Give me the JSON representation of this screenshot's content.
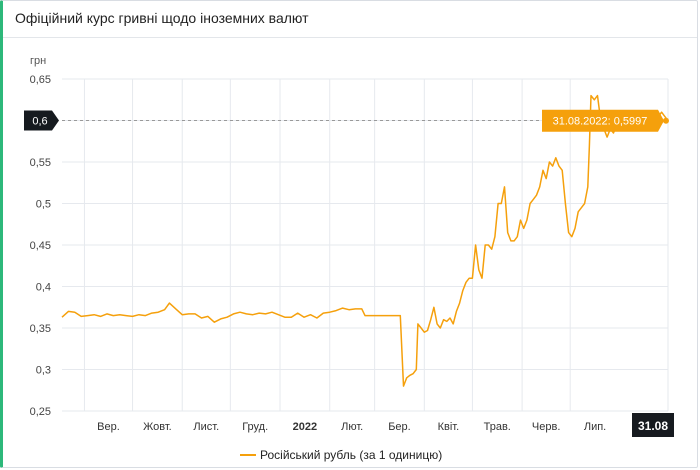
{
  "header": {
    "title": "Офіційний курс гривні щодо іноземних валют"
  },
  "chart_data": {
    "type": "line",
    "title": "",
    "ylabel": "грн",
    "xlabel": "",
    "ylim": [
      0.25,
      0.65
    ],
    "grid": true,
    "legend_position": "bottom",
    "y_ticks": [
      "0,25",
      "0,3",
      "0,35",
      "0,4",
      "0,45",
      "0,5",
      "0,55",
      "0,6",
      "0,65"
    ],
    "y_tick_values": [
      0.25,
      0.3,
      0.35,
      0.4,
      0.45,
      0.5,
      0.55,
      0.6,
      0.65
    ],
    "highlighted_y_tick": {
      "label": "0,6",
      "value": 0.6
    },
    "x_ticks": [
      "Вер.",
      "Жовт.",
      "Лист.",
      "Груд.",
      "2022",
      "Лют.",
      "Бер.",
      "Квіт.",
      "Трав.",
      "Черв.",
      "Лип."
    ],
    "x_tick_dates": [
      "2021-09-01",
      "2021-10-01",
      "2021-11-01",
      "2021-12-01",
      "2022-01-01",
      "2022-02-01",
      "2022-03-01",
      "2022-04-01",
      "2022-05-01",
      "2022-06-01",
      "2022-07-01"
    ],
    "x_range": [
      "2021-08-18",
      "2022-08-31"
    ],
    "x_end_label": "31.08",
    "series": [
      {
        "name": "Російський рубль (за 1 одиницю)",
        "color": "#f5a00c",
        "points": [
          [
            "2021-08-18",
            0.363
          ],
          [
            "2021-08-22",
            0.37
          ],
          [
            "2021-08-26",
            0.369
          ],
          [
            "2021-08-30",
            0.364
          ],
          [
            "2021-09-03",
            0.365
          ],
          [
            "2021-09-07",
            0.366
          ],
          [
            "2021-09-11",
            0.364
          ],
          [
            "2021-09-15",
            0.367
          ],
          [
            "2021-09-19",
            0.365
          ],
          [
            "2021-09-23",
            0.366
          ],
          [
            "2021-09-27",
            0.365
          ],
          [
            "2021-10-01",
            0.364
          ],
          [
            "2021-10-05",
            0.366
          ],
          [
            "2021-10-09",
            0.365
          ],
          [
            "2021-10-13",
            0.368
          ],
          [
            "2021-10-17",
            0.369
          ],
          [
            "2021-10-21",
            0.372
          ],
          [
            "2021-10-24",
            0.38
          ],
          [
            "2021-10-28",
            0.373
          ],
          [
            "2021-11-01",
            0.366
          ],
          [
            "2021-11-05",
            0.367
          ],
          [
            "2021-11-09",
            0.367
          ],
          [
            "2021-11-13",
            0.362
          ],
          [
            "2021-11-17",
            0.364
          ],
          [
            "2021-11-21",
            0.357
          ],
          [
            "2021-11-25",
            0.361
          ],
          [
            "2021-11-29",
            0.363
          ],
          [
            "2021-12-03",
            0.367
          ],
          [
            "2021-12-07",
            0.369
          ],
          [
            "2021-12-11",
            0.367
          ],
          [
            "2021-12-15",
            0.366
          ],
          [
            "2021-12-19",
            0.368
          ],
          [
            "2021-12-23",
            0.367
          ],
          [
            "2021-12-27",
            0.369
          ],
          [
            "2021-12-31",
            0.366
          ],
          [
            "2022-01-04",
            0.363
          ],
          [
            "2022-01-08",
            0.363
          ],
          [
            "2022-01-12",
            0.368
          ],
          [
            "2022-01-16",
            0.363
          ],
          [
            "2022-01-20",
            0.366
          ],
          [
            "2022-01-24",
            0.362
          ],
          [
            "2022-01-28",
            0.368
          ],
          [
            "2022-02-01",
            0.369
          ],
          [
            "2022-02-05",
            0.371
          ],
          [
            "2022-02-09",
            0.374
          ],
          [
            "2022-02-13",
            0.372
          ],
          [
            "2022-02-17",
            0.373
          ],
          [
            "2022-02-21",
            0.373
          ],
          [
            "2022-02-23",
            0.365
          ],
          [
            "2022-02-27",
            0.365
          ],
          [
            "2022-03-03",
            0.365
          ],
          [
            "2022-03-07",
            0.365
          ],
          [
            "2022-03-11",
            0.365
          ],
          [
            "2022-03-15",
            0.365
          ],
          [
            "2022-03-17",
            0.365
          ],
          [
            "2022-03-19",
            0.28
          ],
          [
            "2022-03-21",
            0.29
          ],
          [
            "2022-03-23",
            0.293
          ],
          [
            "2022-03-25",
            0.295
          ],
          [
            "2022-03-27",
            0.3
          ],
          [
            "2022-03-28",
            0.355
          ],
          [
            "2022-03-30",
            0.35
          ],
          [
            "2022-04-01",
            0.345
          ],
          [
            "2022-04-03",
            0.347
          ],
          [
            "2022-04-05",
            0.36
          ],
          [
            "2022-04-07",
            0.375
          ],
          [
            "2022-04-09",
            0.355
          ],
          [
            "2022-04-11",
            0.35
          ],
          [
            "2022-04-13",
            0.36
          ],
          [
            "2022-04-15",
            0.358
          ],
          [
            "2022-04-17",
            0.362
          ],
          [
            "2022-04-19",
            0.355
          ],
          [
            "2022-04-21",
            0.37
          ],
          [
            "2022-04-23",
            0.38
          ],
          [
            "2022-04-25",
            0.395
          ],
          [
            "2022-04-27",
            0.405
          ],
          [
            "2022-04-29",
            0.41
          ],
          [
            "2022-05-01",
            0.41
          ],
          [
            "2022-05-03",
            0.45
          ],
          [
            "2022-05-05",
            0.42
          ],
          [
            "2022-05-07",
            0.41
          ],
          [
            "2022-05-09",
            0.45
          ],
          [
            "2022-05-11",
            0.45
          ],
          [
            "2022-05-13",
            0.445
          ],
          [
            "2022-05-15",
            0.46
          ],
          [
            "2022-05-17",
            0.5
          ],
          [
            "2022-05-19",
            0.5
          ],
          [
            "2022-05-21",
            0.52
          ],
          [
            "2022-05-23",
            0.465
          ],
          [
            "2022-05-25",
            0.455
          ],
          [
            "2022-05-27",
            0.455
          ],
          [
            "2022-05-29",
            0.46
          ],
          [
            "2022-05-31",
            0.48
          ],
          [
            "2022-06-02",
            0.47
          ],
          [
            "2022-06-04",
            0.48
          ],
          [
            "2022-06-06",
            0.5
          ],
          [
            "2022-06-08",
            0.505
          ],
          [
            "2022-06-10",
            0.51
          ],
          [
            "2022-06-12",
            0.52
          ],
          [
            "2022-06-14",
            0.54
          ],
          [
            "2022-06-16",
            0.53
          ],
          [
            "2022-06-18",
            0.55
          ],
          [
            "2022-06-20",
            0.545
          ],
          [
            "2022-06-22",
            0.555
          ],
          [
            "2022-06-24",
            0.545
          ],
          [
            "2022-06-26",
            0.54
          ],
          [
            "2022-06-28",
            0.5
          ],
          [
            "2022-06-30",
            0.465
          ],
          [
            "2022-07-02",
            0.46
          ],
          [
            "2022-07-04",
            0.47
          ],
          [
            "2022-07-06",
            0.49
          ],
          [
            "2022-07-08",
            0.495
          ],
          [
            "2022-07-10",
            0.5
          ],
          [
            "2022-07-12",
            0.52
          ],
          [
            "2022-07-13",
            0.57
          ],
          [
            "2022-07-14",
            0.63
          ],
          [
            "2022-07-16",
            0.625
          ],
          [
            "2022-07-18",
            0.63
          ],
          [
            "2022-07-20",
            0.6
          ],
          [
            "2022-07-22",
            0.59
          ],
          [
            "2022-07-24",
            0.58
          ],
          [
            "2022-07-26",
            0.59
          ],
          [
            "2022-07-28",
            0.585
          ],
          [
            "2022-07-30",
            0.595
          ],
          [
            "2022-08-01",
            0.6
          ],
          [
            "2022-08-03",
            0.595
          ],
          [
            "2022-08-05",
            0.6
          ],
          [
            "2022-08-07",
            0.6
          ],
          [
            "2022-08-09",
            0.6
          ],
          [
            "2022-08-11",
            0.6
          ],
          [
            "2022-08-13",
            0.6
          ],
          [
            "2022-08-15",
            0.6
          ],
          [
            "2022-08-17",
            0.6
          ],
          [
            "2022-08-19",
            0.6
          ],
          [
            "2022-08-21",
            0.6
          ],
          [
            "2022-08-23",
            0.6
          ],
          [
            "2022-08-25",
            0.605
          ],
          [
            "2022-08-27",
            0.61
          ],
          [
            "2022-08-29",
            0.605
          ],
          [
            "2022-08-31",
            0.5997
          ]
        ]
      }
    ],
    "tooltip": {
      "date": "31.08.2022",
      "value": "0,5997",
      "text": "31.08.2022: 0,5997"
    },
    "legend": [
      {
        "label": "Російський рубль (за 1 одиницю)",
        "color": "#f5a00c"
      }
    ],
    "colors": {
      "line": "#f5a00c",
      "dark_label": "#161a1f",
      "grid": "#e6e9ee"
    }
  }
}
